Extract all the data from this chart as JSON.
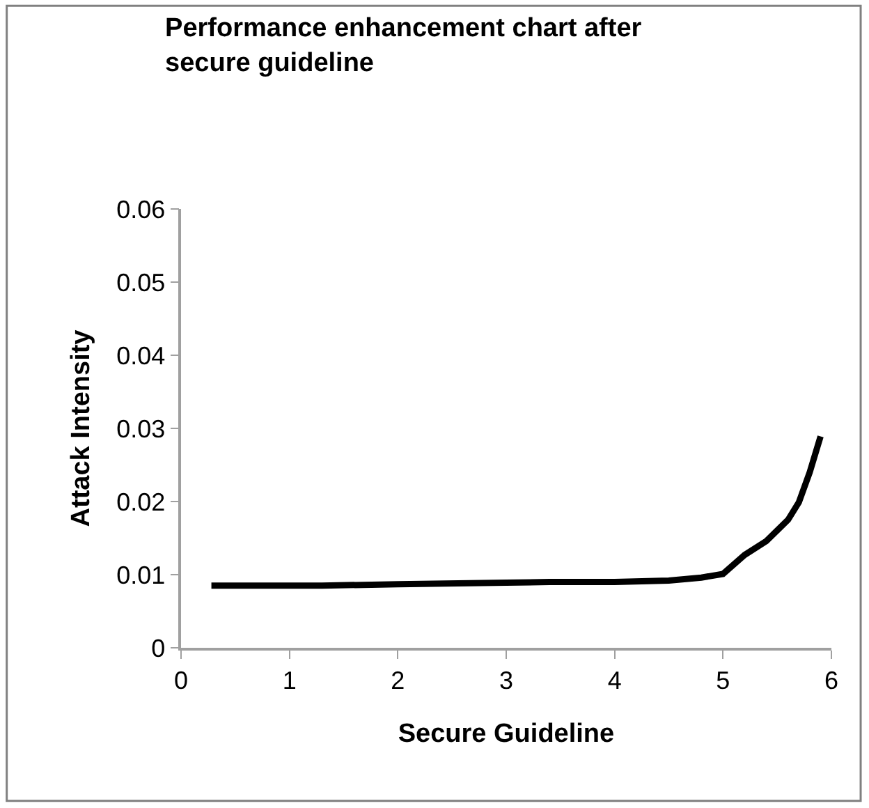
{
  "chart_data": {
    "type": "line",
    "title": "Performance enhancement chart after secure guideline",
    "xlabel": "Secure Guideline",
    "ylabel": "Attack Intensity",
    "series": [
      {
        "color": "#000000",
        "x": [
          0.28,
          1.3,
          2.0,
          3.0,
          3.4,
          4.0,
          4.5,
          4.8,
          5.0,
          5.2,
          5.4,
          5.6,
          5.7,
          5.8,
          5.9
        ],
        "values": [
          0.0085,
          0.0085,
          0.0087,
          0.0089,
          0.009,
          0.009,
          0.0092,
          0.0096,
          0.0101,
          0.0127,
          0.0146,
          0.0175,
          0.0199,
          0.024,
          0.0289
        ]
      }
    ],
    "xlim": [
      0,
      6
    ],
    "xticks": [
      0,
      1,
      2,
      3,
      4,
      5,
      6
    ],
    "ylim": [
      0,
      0.06
    ],
    "yticks": [
      {
        "value": 0,
        "label": "0"
      },
      0.01,
      0.02,
      0.03,
      0.04,
      0.05,
      0.06
    ],
    "marker": "none",
    "line_style": "solid"
  }
}
